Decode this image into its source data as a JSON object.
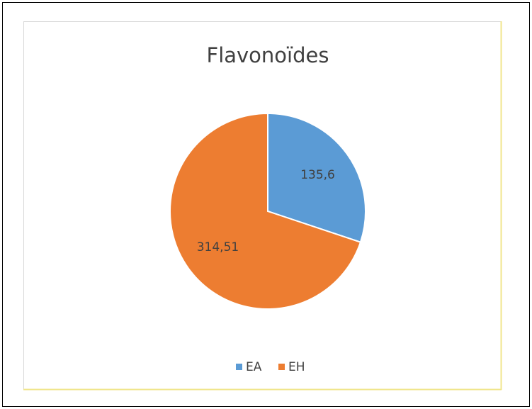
{
  "chart_data": {
    "type": "pie",
    "title": "Flavonoïdes",
    "categories": [
      "EA",
      "EH"
    ],
    "values": [
      135.6,
      314.51
    ],
    "value_labels": [
      "135,6",
      "314,51"
    ],
    "colors": [
      "#5b9bd5",
      "#ed7d31"
    ],
    "legend": "bottom"
  }
}
